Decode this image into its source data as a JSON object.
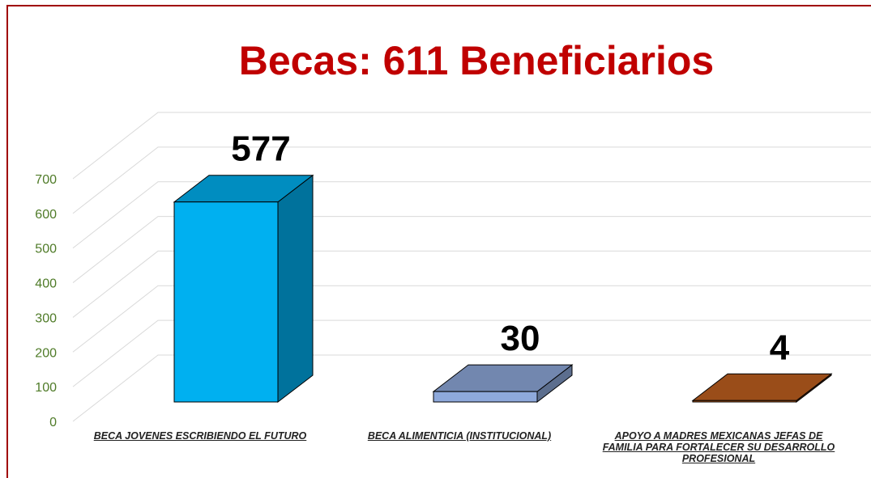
{
  "chart_data": {
    "type": "bar3d",
    "title": "Becas: 611 Beneficiarios",
    "categories": [
      "BECA JOVENES ESCRIBIENDO EL FUTURO",
      "BECA ALIMENTICIA (INSTITUCIONAL)",
      "APOYO A MADRES MEXICANAS JEFAS DE FAMILIA PARA FORTALECER SU DESARROLLO PROFESIONAL"
    ],
    "values": [
      577,
      30,
      4
    ],
    "colors": [
      "#00b0f0",
      "#8ea9db",
      "#c0601f"
    ],
    "ylim": [
      0,
      700
    ],
    "yticks": [
      0,
      100,
      200,
      300,
      400,
      500,
      600,
      700
    ],
    "grid": true
  }
}
